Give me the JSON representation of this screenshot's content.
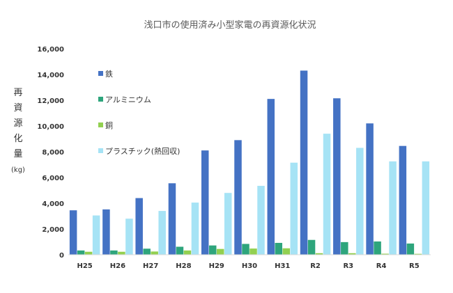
{
  "chart_data": {
    "type": "bar",
    "title": "浅口市の使用済み小型家電の再資源化状況",
    "ylabel_chars": [
      "再",
      "資",
      "源",
      "化",
      "量"
    ],
    "yunit": "(kg)",
    "categories": [
      "H25",
      "H26",
      "H27",
      "H28",
      "H29",
      "H30",
      "H31",
      "R2",
      "R3",
      "R4",
      "R5"
    ],
    "ylim": [
      0,
      16000
    ],
    "yticks": [
      "0",
      "2,000",
      "4,000",
      "6,000",
      "8,000",
      "10,000",
      "12,000",
      "14,000",
      "16,000"
    ],
    "grid": false,
    "legend_position": "top-left",
    "series": [
      {
        "name": "鉄",
        "color": "#4472C4",
        "values": [
          3450,
          3520,
          4400,
          5550,
          8100,
          8900,
          12100,
          14300,
          12150,
          10200,
          8450
        ]
      },
      {
        "name": "アルミニウム",
        "color": "#2EA57C",
        "values": [
          330,
          330,
          470,
          620,
          720,
          840,
          920,
          1150,
          980,
          1030,
          870
        ]
      },
      {
        "name": "銅",
        "color": "#92D050",
        "values": [
          230,
          230,
          250,
          330,
          450,
          480,
          500,
          120,
          120,
          80,
          70
        ]
      },
      {
        "name": "プラスチック(熱回収)",
        "color": "#A6E3F5",
        "values": [
          3050,
          2800,
          3400,
          4050,
          4800,
          5350,
          7150,
          9400,
          8300,
          7250,
          7250
        ]
      }
    ]
  }
}
